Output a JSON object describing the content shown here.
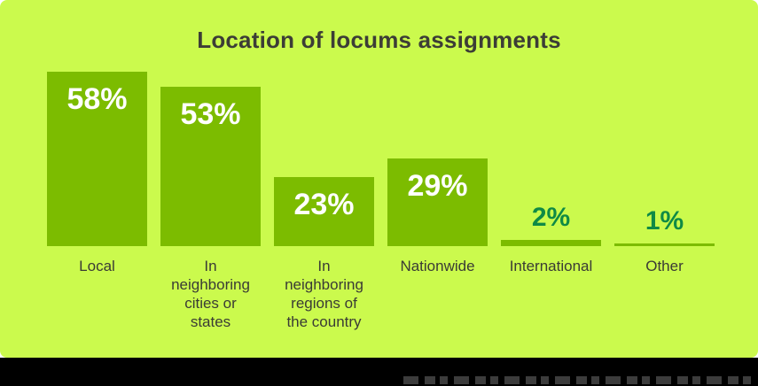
{
  "page": {
    "background_color": "#ffffff",
    "bottom_band_color": "#000000",
    "cropped_text_remnant_color": "#3c3c3c"
  },
  "chart_data": {
    "type": "bar",
    "title": "Location of locums assignments",
    "categories": [
      "Local",
      "In neighboring cities or states",
      "In neighboring regions of the country",
      "Nationwide",
      "International",
      "Other"
    ],
    "categories_display": [
      "Local",
      "In\nneighboring\ncities or\nstates",
      "In\nneighboring\nregions of\nthe country",
      "Nationwide",
      "International",
      "Other"
    ],
    "values": [
      58,
      53,
      23,
      29,
      2,
      1
    ],
    "value_labels": [
      "58%",
      "53%",
      "23%",
      "29%",
      "2%",
      "1%"
    ],
    "unit": "%",
    "ylim": [
      0,
      60
    ],
    "grid": false,
    "legend": false,
    "colors": {
      "background": "#cbfa4d",
      "bar": "#7cbc00",
      "title_text": "#3c3d36",
      "category_text": "#3a3b35",
      "value_inside_text": "#ffffff",
      "value_outside_text": "#0f8a45"
    }
  }
}
